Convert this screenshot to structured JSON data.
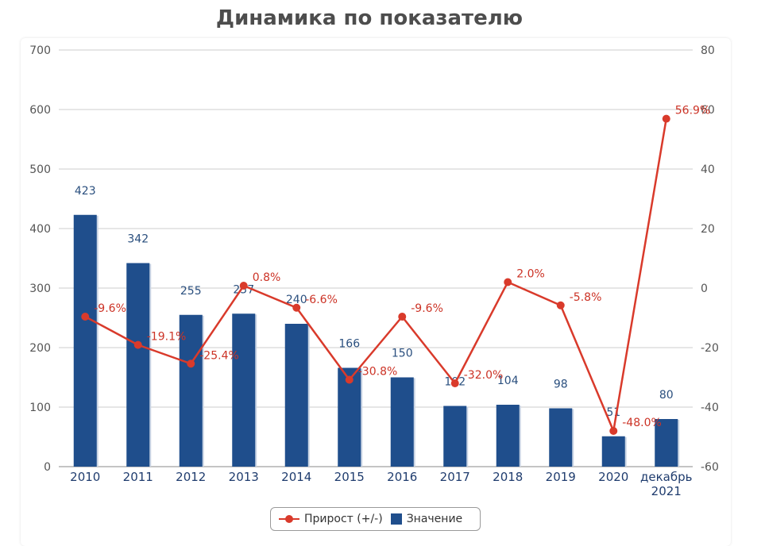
{
  "title": "Динамика по показателю",
  "colors": {
    "bar": "#1f4e8c",
    "line": "#d93a2b",
    "grid": "#cccccc"
  },
  "legend": {
    "placement": "bottom-center",
    "line_label": "Прирост (+/-)",
    "bar_label": "Значение"
  },
  "chart_data": {
    "type": "bar+line",
    "title": "Динамика по показателю",
    "categories": [
      "2010",
      "2011",
      "2012",
      "2013",
      "2014",
      "2015",
      "2016",
      "2017",
      "2018",
      "2019",
      "2020",
      "декабрь 2021"
    ],
    "y_left": {
      "min": 0,
      "max": 700,
      "ticks": [
        0,
        100,
        200,
        300,
        400,
        500,
        600,
        700
      ]
    },
    "y_right": {
      "min": -60,
      "max": 80,
      "ticks": [
        -60,
        -40,
        -20,
        0,
        20,
        40,
        60,
        80
      ]
    },
    "grid": true,
    "series": [
      {
        "name": "Значение",
        "type": "bar",
        "axis": "left",
        "values": [
          423,
          342,
          255,
          257,
          240,
          166,
          150,
          102,
          104,
          98,
          51,
          80
        ],
        "labels": [
          "423",
          "342",
          "255",
          "257",
          "240",
          "166",
          "150",
          "102",
          "104",
          "98",
          "51",
          "80"
        ]
      },
      {
        "name": "Прирост (+/-)",
        "type": "line",
        "axis": "right",
        "values": [
          -9.6,
          -19.1,
          -25.4,
          0.8,
          -6.6,
          -30.8,
          -9.6,
          -32.0,
          2.0,
          -5.8,
          -48.0,
          56.9
        ],
        "labels": [
          "-9.6%",
          "-19.1%",
          "-25.4%",
          "0.8%",
          "-6.6%",
          "-30.8%",
          "-9.6%",
          "-32.0%",
          "2.0%",
          "-5.8%",
          "-48.0%",
          "56.9%"
        ]
      }
    ]
  }
}
